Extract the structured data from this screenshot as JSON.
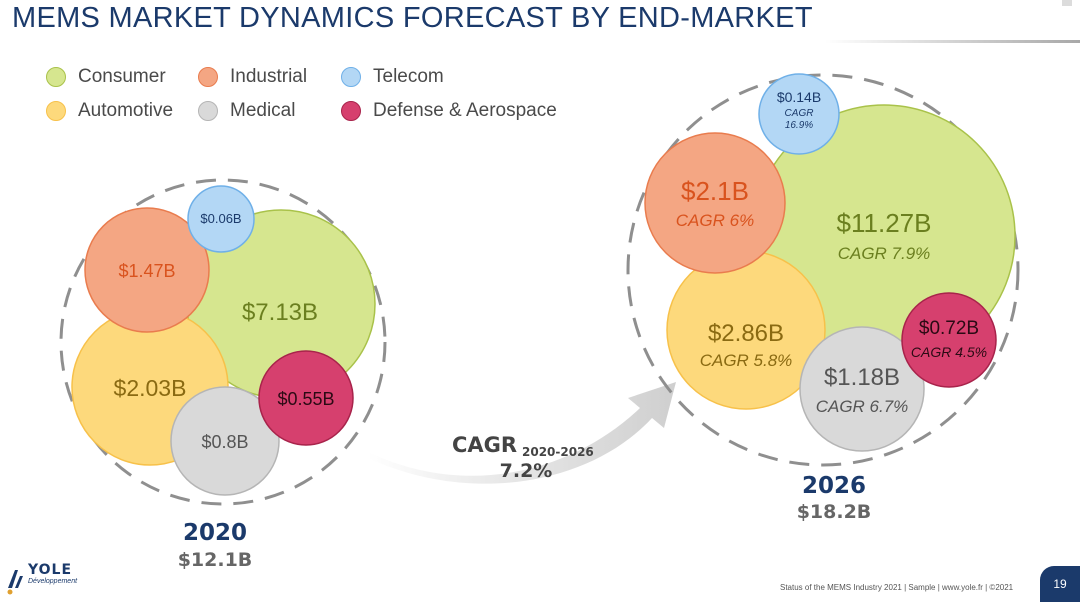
{
  "title": "MEMS MARKET DYNAMICS FORECAST BY END-MARKET",
  "legend": [
    {
      "label": "Consumer",
      "color": "#d6e68f",
      "stroke": "#a9c24a"
    },
    {
      "label": "Industrial",
      "color": "#f4a683",
      "stroke": "#e97c4e"
    },
    {
      "label": "Telecom",
      "color": "#b3d7f5",
      "stroke": "#6fb0e8"
    },
    {
      "label": "Automotive",
      "color": "#fdd97c",
      "stroke": "#f7c14a"
    },
    {
      "label": "Medical",
      "color": "#d9d9d9",
      "stroke": "#b5b5b5"
    },
    {
      "label": "Defense & Aerospace",
      "color": "#d6406e",
      "stroke": "#a8234b"
    }
  ],
  "chart_data": {
    "type": "bubble",
    "unit": "$B",
    "groups": [
      {
        "year": "2020",
        "total": "$12.1B",
        "segments": [
          {
            "name": "Consumer",
            "value": 7.13,
            "label": "$7.13B",
            "cagr": ""
          },
          {
            "name": "Automotive",
            "value": 2.03,
            "label": "$2.03B",
            "cagr": ""
          },
          {
            "name": "Industrial",
            "value": 1.47,
            "label": "$1.47B",
            "cagr": ""
          },
          {
            "name": "Medical",
            "value": 0.8,
            "label": "$0.8B",
            "cagr": ""
          },
          {
            "name": "Defense & Aerospace",
            "value": 0.55,
            "label": "$0.55B",
            "cagr": ""
          },
          {
            "name": "Telecom",
            "value": 0.06,
            "label": "$0.06B",
            "cagr": ""
          }
        ]
      },
      {
        "year": "2026",
        "total": "$18.2B",
        "segments": [
          {
            "name": "Consumer",
            "value": 11.27,
            "label": "$11.27B",
            "cagr": "CAGR 7.9%"
          },
          {
            "name": "Automotive",
            "value": 2.86,
            "label": "$2.86B",
            "cagr": "CAGR 5.8%"
          },
          {
            "name": "Industrial",
            "value": 2.1,
            "label": "$2.1B",
            "cagr": "CAGR 6%"
          },
          {
            "name": "Medical",
            "value": 1.18,
            "label": "$1.18B",
            "cagr": "CAGR 6.7%"
          },
          {
            "name": "Defense & Aerospace",
            "value": 0.72,
            "label": "$0.72B",
            "cagr": "CAGR 4.5%"
          },
          {
            "name": "Telecom",
            "value": 0.14,
            "label": "$0.14B",
            "cagr": "CAGR 16.9%"
          }
        ]
      }
    ],
    "arrow": {
      "label": "CAGR",
      "subscript": "2020-2026",
      "value": "7.2%"
    }
  },
  "footer": "Status of the MEMS Industry 2021 | Sample | www.yole.fr | ©2021",
  "page_number": "19",
  "logo": {
    "name": "YOLE",
    "subtitle": "Développement"
  }
}
